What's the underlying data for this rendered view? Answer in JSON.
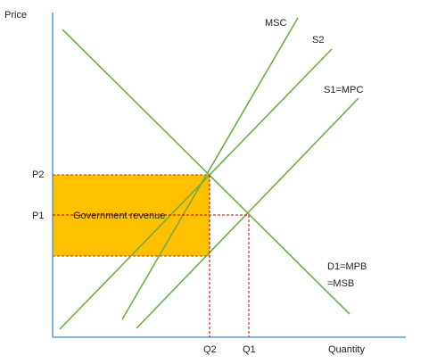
{
  "axes": {
    "y_label": "Price",
    "x_label": "Quantity"
  },
  "price_labels": {
    "p2": "P2",
    "p1": "P1"
  },
  "quantity_labels": {
    "q2": "Q2",
    "q1": "Q1"
  },
  "area_label": "Government revenue",
  "curves": {
    "msc": "MSC",
    "s2": "S2",
    "s1": "S1=MPC",
    "demand_line1": "D1=MPB",
    "demand_line2": "=MSB"
  },
  "colors": {
    "axis": "#5b9bd5",
    "curve": "#70ad47",
    "revenue_fill": "#ffc000",
    "guide": "#c00000",
    "revenue_border": "#a33",
    "text": "#222222"
  }
}
